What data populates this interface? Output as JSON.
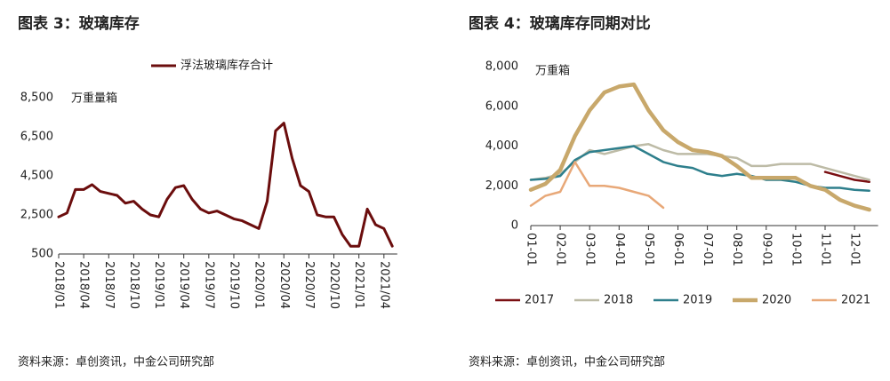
{
  "chart_data": [
    {
      "type": "line",
      "title": "图表 3：玻璃库存",
      "y_label": "万重量箱",
      "source": "资料来源：卓创资讯，中金公司研究部",
      "categories": [
        "2018/01",
        null,
        null,
        "2018/04",
        null,
        null,
        "2018/07",
        null,
        null,
        "2018/10",
        null,
        null,
        "2019/01",
        null,
        null,
        "2019/04",
        null,
        null,
        "2019/07",
        null,
        null,
        "2019/10",
        null,
        null,
        "2020/01",
        null,
        null,
        "2020/04",
        null,
        null,
        "2020/07",
        null,
        null,
        "2020/10",
        null,
        null,
        "2021/01",
        null,
        null,
        "2021/04",
        null
      ],
      "series": [
        {
          "name": "浮法玻璃库存合计",
          "color": "#6b0d0d",
          "values": [
            2400,
            2600,
            3800,
            3800,
            4050,
            3700,
            3600,
            3500,
            3100,
            3200,
            2800,
            2500,
            2400,
            3300,
            3900,
            4000,
            3300,
            2800,
            2600,
            2700,
            2500,
            2300,
            2200,
            2000,
            1800,
            3200,
            6800,
            7200,
            5400,
            4000,
            3700,
            2500,
            2400,
            2400,
            1500,
            900,
            900,
            2800,
            2000,
            1800,
            900
          ]
        }
      ],
      "ylim": [
        500,
        8500
      ],
      "yticks": [
        {
          "value": 500,
          "label": "500"
        },
        {
          "value": 2500,
          "label": "2,500"
        },
        {
          "value": 4500,
          "label": "4,500"
        },
        {
          "value": 6500,
          "label": "6,500"
        },
        {
          "value": 8500,
          "label": "8,500"
        }
      ],
      "legend": "top"
    },
    {
      "type": "line",
      "title": "图表 4：玻璃库存同期对比",
      "y_label": "万重箱",
      "source": "资料来源：卓创资讯，中金公司研究部",
      "categories": [
        "01-01",
        null,
        "02-01",
        null,
        "03-01",
        null,
        "04-01",
        null,
        "05-01",
        null,
        "06-01",
        null,
        "07-01",
        null,
        "08-01",
        null,
        "09-01",
        null,
        "10-01",
        null,
        "11-01",
        null,
        "12-01",
        null
      ],
      "series": [
        {
          "name": "2017",
          "color": "#7a0f12",
          "values": [
            null,
            null,
            null,
            null,
            null,
            null,
            null,
            null,
            null,
            null,
            null,
            null,
            null,
            null,
            null,
            null,
            null,
            null,
            null,
            null,
            2700,
            2500,
            2300,
            2200
          ]
        },
        {
          "name": "2018",
          "color": "#bdbba6",
          "values": [
            2300,
            2400,
            2600,
            3200,
            3800,
            3600,
            3800,
            4000,
            4100,
            3800,
            3600,
            3600,
            3600,
            3500,
            3400,
            3000,
            3000,
            3100,
            3100,
            3100,
            2900,
            2700,
            2500,
            2300
          ]
        },
        {
          "name": "2019",
          "color": "#2e7f8c",
          "values": [
            2300,
            2350,
            2500,
            3300,
            3700,
            3800,
            3900,
            4000,
            3600,
            3200,
            3000,
            2900,
            2600,
            2500,
            2600,
            2500,
            2300,
            2300,
            2200,
            2000,
            1900,
            1900,
            1800,
            1750
          ]
        },
        {
          "name": "2020",
          "color": "#c8a86b",
          "values": [
            1800,
            2100,
            2800,
            4500,
            5800,
            6700,
            7000,
            7100,
            5800,
            4800,
            4200,
            3800,
            3700,
            3500,
            3000,
            2400,
            2400,
            2400,
            2400,
            2000,
            1800,
            1300,
            1000,
            800
          ]
        },
        {
          "name": "2021",
          "color": "#e8a878",
          "values": [
            1000,
            1500,
            1700,
            3200,
            2000,
            2000,
            1900,
            1700,
            1500,
            900,
            null,
            null,
            null,
            null,
            null,
            null,
            null,
            null,
            null,
            null,
            null,
            null,
            null,
            null
          ]
        }
      ],
      "ylim": [
        0,
        8000
      ],
      "yticks": [
        0,
        {
          "value": 2000,
          "label": "2,000"
        },
        {
          "value": 4000,
          "label": "4,000"
        },
        {
          "value": 6000,
          "label": "6,000"
        },
        {
          "value": 8000,
          "label": "8,000"
        }
      ],
      "legend": "bottom"
    }
  ]
}
